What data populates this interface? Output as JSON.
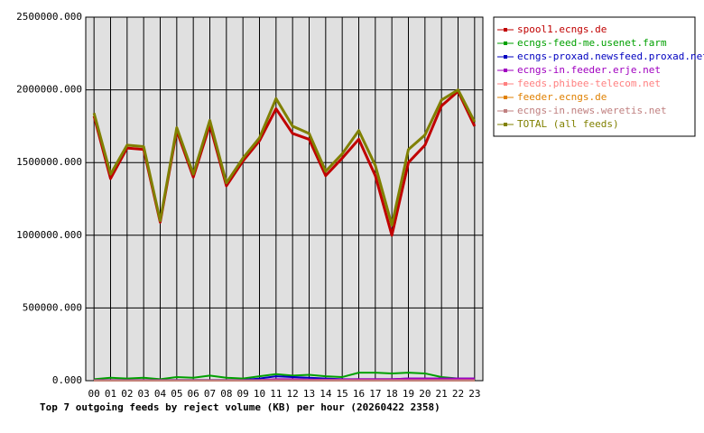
{
  "chart_data": {
    "type": "line",
    "title": "Top 7 outgoing feeds by reject volume (KB) per hour (20260422 2358)",
    "categories": [
      "00",
      "01",
      "02",
      "03",
      "04",
      "05",
      "06",
      "07",
      "08",
      "09",
      "10",
      "11",
      "12",
      "13",
      "14",
      "15",
      "16",
      "17",
      "18",
      "19",
      "20",
      "21",
      "22",
      "23"
    ],
    "series": [
      {
        "name": "spool1.ecngs.de",
        "color": "#c00000",
        "values": [
          1820000,
          1390000,
          1600000,
          1590000,
          1090000,
          1720000,
          1400000,
          1760000,
          1340000,
          1510000,
          1650000,
          1870000,
          1700000,
          1660000,
          1410000,
          1530000,
          1660000,
          1410000,
          1000000,
          1500000,
          1620000,
          1890000,
          1990000,
          1750000
        ]
      },
      {
        "name": "ecngs-feed-me.usenet.farm",
        "color": "#00a000",
        "values": [
          10000,
          20000,
          15000,
          20000,
          10000,
          25000,
          20000,
          35000,
          20000,
          15000,
          30000,
          45000,
          35000,
          40000,
          30000,
          25000,
          55000,
          55000,
          50000,
          55000,
          50000,
          25000,
          15000,
          15000
        ]
      },
      {
        "name": "ecngs-proxad.newsfeed.proxad.net",
        "color": "#0000c0",
        "values": [
          5000,
          5000,
          5000,
          5000,
          5000,
          5000,
          5000,
          5000,
          5000,
          5000,
          15000,
          30000,
          25000,
          20000,
          15000,
          10000,
          10000,
          10000,
          10000,
          15000,
          15000,
          15000,
          15000,
          15000
        ]
      },
      {
        "name": "ecngs-in.feeder.erje.net",
        "color": "#a000c0",
        "values": [
          3000,
          3000,
          3000,
          3000,
          3000,
          3000,
          3000,
          3000,
          3000,
          3000,
          5000,
          10000,
          10000,
          8000,
          8000,
          8000,
          10000,
          10000,
          10000,
          15000,
          15000,
          15000,
          15000,
          15000
        ]
      },
      {
        "name": "feeds.phibee-telecom.net",
        "color": "#ff8080",
        "values": [
          2000,
          2000,
          2000,
          2000,
          2000,
          2000,
          2000,
          2000,
          2000,
          2000,
          2000,
          3000,
          3000,
          3000,
          3000,
          3000,
          3000,
          3000,
          3000,
          3000,
          3000,
          3000,
          3000,
          3000
        ]
      },
      {
        "name": "feeder.ecngs.de",
        "color": "#e08000",
        "values": [
          1000,
          1000,
          1000,
          1000,
          1000,
          1000,
          1000,
          1000,
          1000,
          1000,
          1000,
          1000,
          1000,
          1000,
          1000,
          1000,
          1000,
          1000,
          1000,
          1000,
          1000,
          1000,
          1000,
          1000
        ]
      },
      {
        "name": "ecngs-in.news.weretis.net",
        "color": "#c08080",
        "values": [
          1000,
          1000,
          1000,
          1000,
          1000,
          1000,
          1000,
          1000,
          1000,
          1000,
          1000,
          1000,
          1000,
          1000,
          1000,
          1000,
          1000,
          1000,
          1000,
          1000,
          1000,
          1000,
          1000,
          1000
        ]
      },
      {
        "name": "TOTAL (all feeds)",
        "color": "#808000",
        "values": [
          1840000,
          1420000,
          1620000,
          1610000,
          1100000,
          1740000,
          1420000,
          1790000,
          1360000,
          1530000,
          1670000,
          1940000,
          1750000,
          1700000,
          1440000,
          1560000,
          1720000,
          1480000,
          1070000,
          1590000,
          1690000,
          1930000,
          2000000,
          1780000
        ]
      }
    ],
    "ylim": [
      0,
      2500000
    ],
    "yticks": [
      {
        "value": 0,
        "label": "0.000"
      },
      {
        "value": 500000,
        "label": "500000.000"
      },
      {
        "value": 1000000,
        "label": "1000000.000"
      },
      {
        "value": 1500000,
        "label": "1500000.000"
      },
      {
        "value": 2000000,
        "label": "2000000.000"
      },
      {
        "value": 2500000,
        "label": "2500000.000"
      }
    ],
    "grid": true
  }
}
